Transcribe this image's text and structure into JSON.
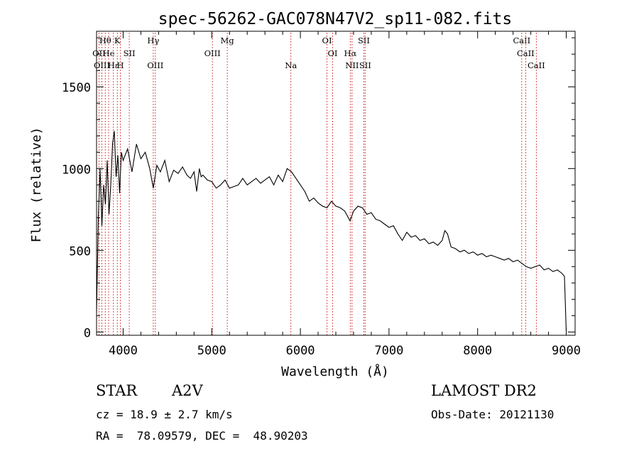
{
  "chart_data": {
    "type": "line",
    "title": "spec-56262-GAC078N47V2_sp11-082.fits",
    "xlabel": "Wavelength (Å)",
    "ylabel": "Flux (relative)",
    "xlim": [
      3700,
      9100
    ],
    "ylim": [
      -20,
      1840
    ],
    "x_ticks": [
      4000,
      5000,
      6000,
      7000,
      8000,
      9000
    ],
    "x_tick_labels": [
      "4000",
      "5000",
      "6000",
      "7000",
      "8000",
      "9000"
    ],
    "y_ticks": [
      0,
      500,
      1000,
      1500
    ],
    "y_tick_labels": [
      "0",
      "500",
      "1000",
      "1500"
    ],
    "grid": false,
    "line_color": "#000000",
    "marker_color": "#cc2222",
    "series": [
      {
        "name": "spectrum",
        "x": [
          3700,
          3720,
          3740,
          3760,
          3780,
          3800,
          3820,
          3840,
          3860,
          3880,
          3900,
          3920,
          3940,
          3960,
          3980,
          4000,
          4050,
          4100,
          4150,
          4200,
          4250,
          4300,
          4340,
          4380,
          4420,
          4470,
          4520,
          4570,
          4620,
          4670,
          4720,
          4760,
          4800,
          4830,
          4860,
          4880,
          4900,
          4950,
          5000,
          5050,
          5100,
          5150,
          5200,
          5250,
          5300,
          5350,
          5400,
          5450,
          5500,
          5550,
          5600,
          5650,
          5700,
          5750,
          5800,
          5850,
          5900,
          5950,
          6000,
          6050,
          6100,
          6150,
          6200,
          6250,
          6300,
          6350,
          6400,
          6450,
          6500,
          6560,
          6600,
          6650,
          6700,
          6750,
          6800,
          6850,
          6900,
          6950,
          7000,
          7050,
          7100,
          7150,
          7200,
          7250,
          7300,
          7350,
          7400,
          7450,
          7500,
          7550,
          7600,
          7630,
          7660,
          7700,
          7750,
          7800,
          7850,
          7900,
          7950,
          8000,
          8050,
          8100,
          8150,
          8200,
          8250,
          8300,
          8350,
          8400,
          8450,
          8500,
          8550,
          8600,
          8650,
          8700,
          8750,
          8800,
          8850,
          8900,
          8950,
          8980,
          9000
        ],
        "y": [
          120,
          700,
          1000,
          650,
          900,
          780,
          1050,
          720,
          900,
          1150,
          1230,
          950,
          1080,
          850,
          1100,
          1050,
          1120,
          980,
          1150,
          1060,
          1100,
          1000,
          880,
          1020,
          980,
          1050,
          920,
          990,
          970,
          1010,
          960,
          940,
          980,
          860,
          1000,
          950,
          960,
          930,
          920,
          880,
          900,
          930,
          880,
          890,
          900,
          940,
          900,
          920,
          940,
          910,
          930,
          950,
          900,
          960,
          920,
          1000,
          980,
          940,
          900,
          860,
          800,
          820,
          790,
          770,
          760,
          800,
          770,
          760,
          740,
          680,
          740,
          770,
          760,
          720,
          730,
          690,
          680,
          660,
          640,
          650,
          600,
          560,
          610,
          580,
          590,
          560,
          570,
          540,
          550,
          530,
          560,
          620,
          600,
          520,
          510,
          490,
          500,
          480,
          490,
          470,
          480,
          460,
          470,
          460,
          450,
          440,
          450,
          430,
          440,
          420,
          400,
          390,
          400,
          410,
          380,
          390,
          370,
          380,
          360,
          340,
          5
        ]
      }
    ],
    "line_markers": [
      {
        "label": "Hθ",
        "x": 3798,
        "row": 1
      },
      {
        "label": "OII",
        "x": 3727,
        "row": 2
      },
      {
        "label": "He",
        "x": 3836,
        "row": 2
      },
      {
        "label": "K",
        "x": 3934,
        "row": 1
      },
      {
        "label": "SII",
        "x": 4069,
        "row": 2
      },
      {
        "label": "OIII",
        "x": 3760,
        "row": 3
      },
      {
        "label": "Hε",
        "x": 3890,
        "row": 3
      },
      {
        "label": "H",
        "x": 3969,
        "row": 3
      },
      {
        "label": "Hγ",
        "x": 4340,
        "row": 1
      },
      {
        "label": "OIII",
        "x": 4363,
        "row": 3
      },
      {
        "label": "OIII",
        "x": 5007,
        "row": 2
      },
      {
        "label": "Mg",
        "x": 5175,
        "row": 1
      },
      {
        "label": "Na",
        "x": 5893,
        "row": 3
      },
      {
        "label": "OI",
        "x": 6300,
        "row": 1
      },
      {
        "label": "OI",
        "x": 6364,
        "row": 2
      },
      {
        "label": "Hα",
        "x": 6563,
        "row": 2
      },
      {
        "label": "NII",
        "x": 6583,
        "row": 3
      },
      {
        "label": "SII",
        "x": 6716,
        "row": 1
      },
      {
        "label": "SII",
        "x": 6731,
        "row": 3
      },
      {
        "label": "CaII",
        "x": 8498,
        "row": 1
      },
      {
        "label": "CaII",
        "x": 8542,
        "row": 2
      },
      {
        "label": "CaII",
        "x": 8662,
        "row": 3
      }
    ]
  },
  "info": {
    "object_class": "STAR",
    "subclass": "A2V",
    "survey": "LAMOST DR2",
    "cz": "cz = 18.9 ± 2.7 km/s",
    "obs_date": "Obs-Date: 20121130",
    "coords": "RA =  78.09579, DEC =  48.90203"
  }
}
